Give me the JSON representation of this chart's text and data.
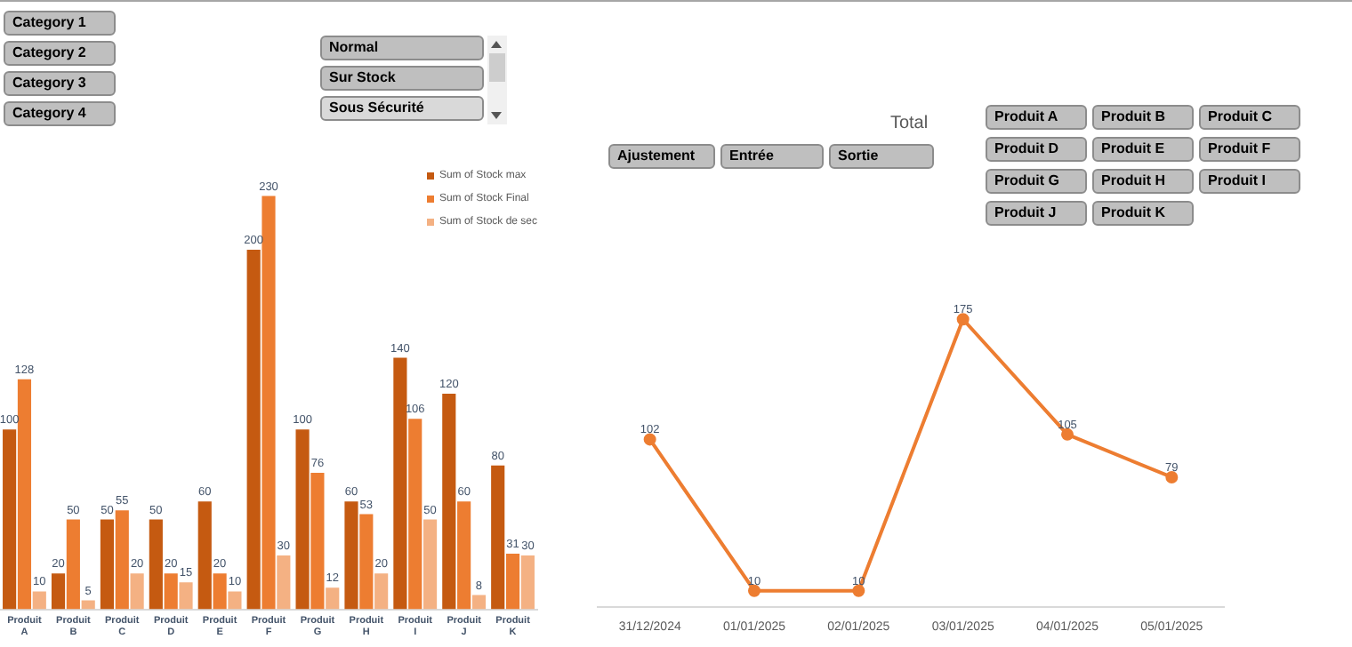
{
  "chart_data": [
    {
      "type": "bar",
      "categories": [
        "Produit A",
        "Produit B",
        "Produit C",
        "Produit D",
        "Produit E",
        "Produit F",
        "Produit G",
        "Produit H",
        "Produit I",
        "Produit J",
        "Produit K"
      ],
      "series": [
        {
          "name": "Sum of Stock max",
          "color": "#c55a11",
          "values": [
            100,
            20,
            50,
            50,
            60,
            200,
            100,
            60,
            140,
            120,
            80
          ]
        },
        {
          "name": "Sum of Stock Final",
          "color": "#ed7d31",
          "values": [
            128,
            50,
            55,
            20,
            20,
            230,
            76,
            53,
            106,
            60,
            31
          ]
        },
        {
          "name": "Sum of Stock de sec",
          "color": "#f4b183",
          "values": [
            10,
            5,
            20,
            15,
            10,
            30,
            12,
            20,
            50,
            8,
            30
          ]
        }
      ],
      "data_labels": true,
      "legend": "top right",
      "grid": false
    },
    {
      "type": "line",
      "title": "Total",
      "categories": [
        "31/12/2024",
        "01/01/2025",
        "02/01/2025",
        "03/01/2025",
        "04/01/2025",
        "05/01/2025"
      ],
      "series": [
        {
          "color": "#ed7d31",
          "values": [
            102,
            10,
            10,
            175,
            105,
            79
          ]
        }
      ],
      "data_labels": true,
      "marker": "circle",
      "line_style": "solid",
      "grid": false,
      "tick_labels": "x"
    },
    {
      "type": "other",
      "annotations": [
        "Category 1",
        "Category 2",
        "Category 3",
        "Category 4",
        "Normal",
        "Sur Stock",
        "Sous Sécurité",
        "Ajustement",
        "Entrée",
        "Sortie",
        "Produit A",
        "Produit B",
        "Produit C",
        "Produit D",
        "Produit E",
        "Produit F",
        "Produit G",
        "Produit H",
        "Produit I",
        "Produit J",
        "Produit K"
      ]
    }
  ]
}
